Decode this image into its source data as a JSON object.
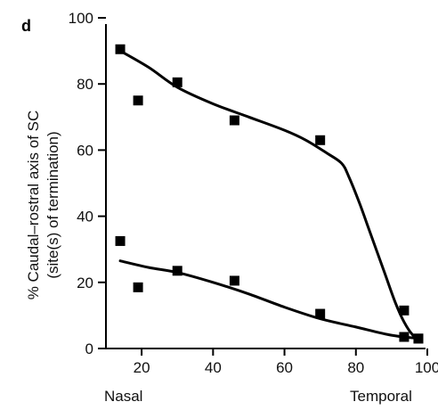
{
  "panel_label": "d",
  "chart_data": {
    "type": "scatter",
    "title": "",
    "xlabel": "",
    "ylabel": "% Caudal–rostral axis of SC",
    "ylabel_line2": "(site(s) of termination)",
    "x_left_label": "Nasal",
    "x_right_label": "Temporal",
    "xlim": [
      10,
      100
    ],
    "ylim": [
      0,
      100
    ],
    "x_ticks": [
      20,
      40,
      60,
      80,
      100
    ],
    "y_ticks": [
      0,
      20,
      40,
      60,
      80,
      100
    ],
    "grid": false,
    "series": [
      {
        "points": [
          [
            14,
            90.5
          ],
          [
            19,
            75
          ],
          [
            30,
            80.5
          ],
          [
            46,
            69
          ],
          [
            70,
            63
          ],
          [
            93.5,
            11.5
          ],
          [
            97.5,
            3
          ]
        ],
        "fit_curve": [
          [
            14,
            90
          ],
          [
            22,
            85
          ],
          [
            30,
            79
          ],
          [
            40,
            74
          ],
          [
            50,
            70
          ],
          [
            60,
            66
          ],
          [
            66,
            63
          ],
          [
            72,
            59
          ],
          [
            76,
            56
          ],
          [
            78,
            52
          ],
          [
            81,
            44
          ],
          [
            84,
            35
          ],
          [
            88,
            23
          ],
          [
            91,
            14
          ],
          [
            93.5,
            8
          ],
          [
            96,
            4
          ],
          [
            98,
            3
          ]
        ]
      },
      {
        "points": [
          [
            14,
            32.5
          ],
          [
            19,
            18.5
          ],
          [
            30,
            23.5
          ],
          [
            46,
            20.5
          ],
          [
            70,
            10.5
          ],
          [
            93.5,
            3.5
          ],
          [
            97.5,
            3
          ]
        ],
        "fit_curve": [
          [
            14,
            26.5
          ],
          [
            22,
            24.5
          ],
          [
            30,
            23
          ],
          [
            40,
            20
          ],
          [
            50,
            16.5
          ],
          [
            60,
            12.5
          ],
          [
            70,
            9
          ],
          [
            80,
            6.5
          ],
          [
            90,
            4
          ],
          [
            98,
            3
          ]
        ]
      }
    ]
  }
}
